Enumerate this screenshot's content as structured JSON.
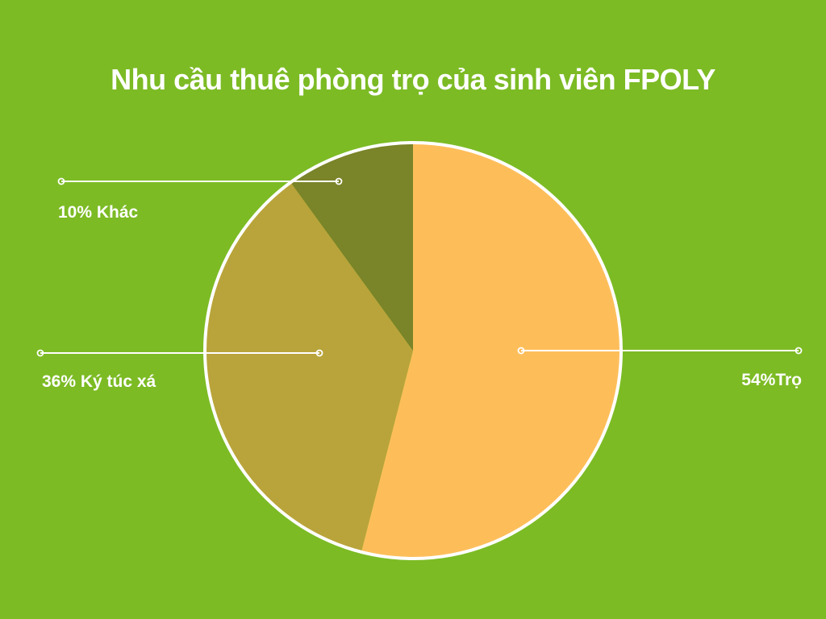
{
  "chart_data": {
    "type": "pie",
    "title": "Nhu cầu thuê phòng trọ của sinh viên FPOLY",
    "slices": [
      {
        "name": "Trọ",
        "value": 54,
        "label": "54%Trọ",
        "color": "#fdbe5a"
      },
      {
        "name": "Ký túc xá",
        "value": 36,
        "label": "36% Ký túc xá",
        "color": "#b9a43b"
      },
      {
        "name": "Khác",
        "value": 10,
        "label": "10% Khác",
        "color": "#7a8428"
      }
    ],
    "start_angle_deg": 0,
    "direction": "clockwise",
    "legend": "none"
  },
  "colors": {
    "background": "#7cbb24",
    "outline": "#ffffff",
    "text": "#ffffff"
  }
}
